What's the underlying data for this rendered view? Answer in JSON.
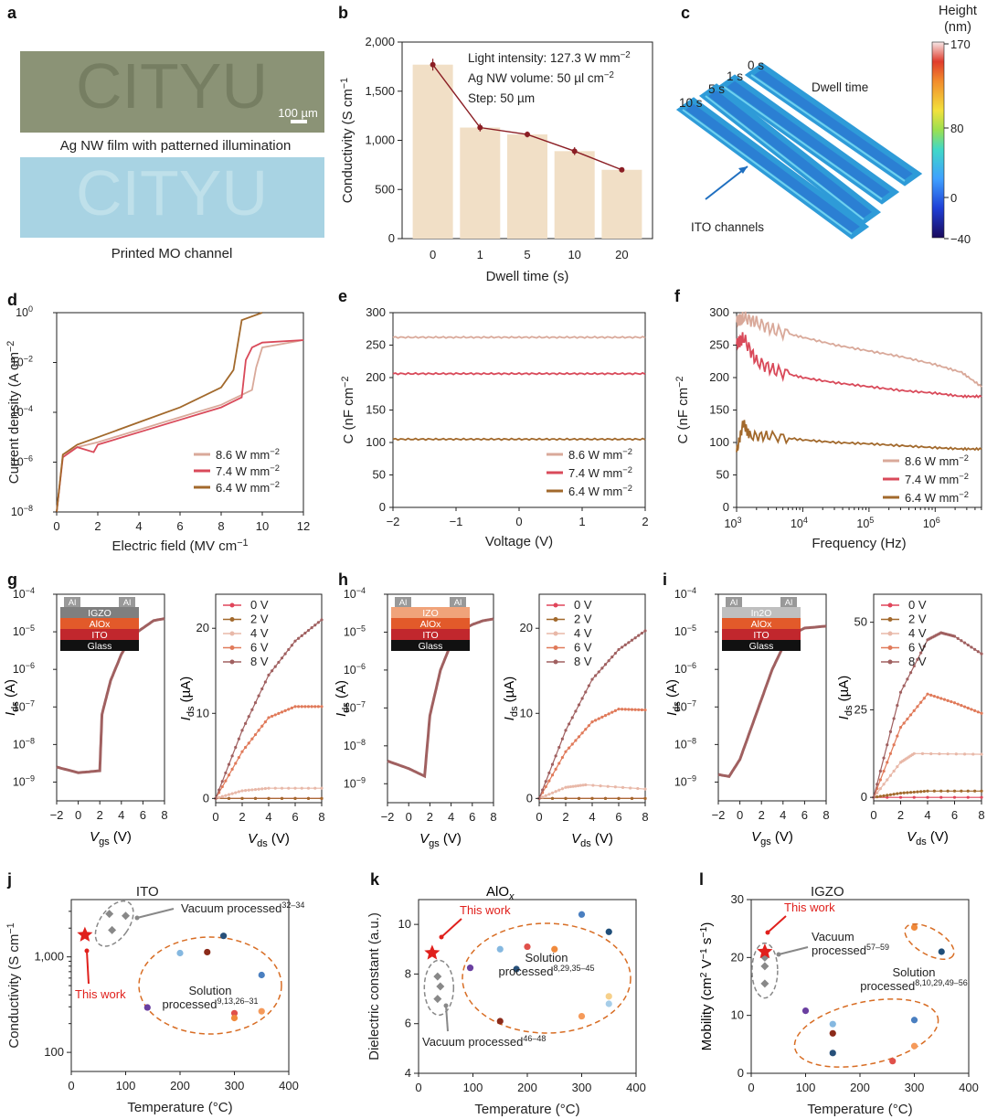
{
  "colors": {
    "c86": "#d9a99a",
    "c74": "#d94a5a",
    "c64": "#a2692c",
    "bar": "#f1dfc6",
    "red": "#e0201c",
    "orange": "#d86d24",
    "gray": "#888888"
  },
  "panels": {
    "a": {
      "letter": "a",
      "caption_top": "Ag NW film with patterned illumination",
      "caption_bottom": "Printed MO channel",
      "photo_text": "CITYU",
      "scale_bar": "100 µm"
    },
    "b": {
      "letter": "b"
    },
    "c": {
      "letter": "c",
      "cbar_title": [
        "Height",
        "(nm)"
      ],
      "cbar_ticks": [
        "170",
        "80",
        "0",
        "−40"
      ],
      "dwell_label": "Dwell time",
      "channels_label": "ITO channels",
      "times": [
        "0 s",
        "1 s",
        "5 s",
        "10 s"
      ]
    },
    "d": {
      "letter": "d"
    },
    "e": {
      "letter": "e"
    },
    "f": {
      "letter": "f"
    },
    "g": {
      "letter": "g",
      "stack": [
        "IGZO",
        "AlOx",
        "ITO",
        "Glass"
      ],
      "al": "Al"
    },
    "h": {
      "letter": "h",
      "stack": [
        "IZO",
        "AlOx",
        "ITO",
        "Glass"
      ],
      "al": "Al"
    },
    "i": {
      "letter": "i",
      "stack": [
        "In2O",
        "AlOx",
        "ITO",
        "Glass"
      ],
      "al": "Al"
    },
    "j": {
      "letter": "j"
    },
    "k": {
      "letter": "k"
    },
    "l": {
      "letter": "l"
    }
  },
  "chart_data": [
    {
      "id": "b",
      "type": "bar",
      "categories": [
        "0",
        "1",
        "5",
        "10",
        "20"
      ],
      "values": [
        1770,
        1130,
        1060,
        890,
        700
      ],
      "errors": [
        60,
        40,
        30,
        40,
        20
      ],
      "xlabel": "Dwell time (s)",
      "ylabel": "Conductivity (S cm−1)",
      "ylim": [
        0,
        2000
      ],
      "yticks": [
        "0",
        "500",
        "1,000",
        "1,500",
        "2,000"
      ],
      "annotations": [
        "Light intensity: 127.3 W mm−2",
        "Ag NW volume: 50 µl cm−2",
        "Step: 50 µm"
      ]
    },
    {
      "id": "d",
      "type": "line",
      "xlabel": "Electric field (MV cm−1)",
      "ylabel": "Current density (A cm−2)",
      "xlim": [
        0,
        12
      ],
      "ylim_log": [
        -8,
        0
      ],
      "xticks": [
        "0",
        "2",
        "4",
        "6",
        "8",
        "10",
        "12"
      ],
      "yticks": [
        "10−8",
        "10−6",
        "10−4",
        "10−2",
        "100"
      ],
      "series": [
        {
          "name": "8.6 W mm−2",
          "x": [
            0,
            0.3,
            1,
            2,
            4,
            6,
            8,
            9,
            9.5,
            9.7,
            10,
            12
          ],
          "y": [
            -8,
            -5.7,
            -5.4,
            -5.2,
            -4.7,
            -4.2,
            -3.7,
            -3.3,
            -3.1,
            -2.2,
            -1.4,
            -1.1
          ]
        },
        {
          "name": "7.4 W mm−2",
          "x": [
            0,
            0.3,
            1,
            1.8,
            2,
            4,
            6,
            8,
            9,
            9.2,
            9.5,
            10,
            12
          ],
          "y": [
            -8,
            -5.8,
            -5.4,
            -5.6,
            -5.3,
            -4.8,
            -4.3,
            -3.8,
            -3.4,
            -1.9,
            -1.4,
            -1.2,
            -1.1
          ]
        },
        {
          "name": "6.4 W mm−2",
          "x": [
            0,
            0.3,
            1,
            2,
            4,
            6,
            8,
            8.6,
            9,
            10
          ],
          "y": [
            -8,
            -5.7,
            -5.3,
            -5.0,
            -4.4,
            -3.8,
            -3.0,
            -2.3,
            -0.3,
            0
          ]
        }
      ]
    },
    {
      "id": "e",
      "type": "line",
      "xlabel": "Voltage (V)",
      "ylabel": "C (nF cm−2)",
      "xlim": [
        -2,
        2
      ],
      "ylim": [
        0,
        300
      ],
      "xticks": [
        "−2",
        "−1",
        "0",
        "1",
        "2"
      ],
      "yticks": [
        "0",
        "50",
        "100",
        "150",
        "200",
        "250",
        "300"
      ],
      "series": [
        {
          "name": "8.6 W mm−2",
          "x": [
            -2,
            2
          ],
          "y": [
            262,
            262
          ]
        },
        {
          "name": "7.4 W mm−2",
          "x": [
            -2,
            2
          ],
          "y": [
            206,
            206
          ]
        },
        {
          "name": "6.4 W mm−2",
          "x": [
            -2,
            2
          ],
          "y": [
            105,
            105
          ]
        }
      ]
    },
    {
      "id": "f",
      "type": "line",
      "xlabel": "Frequency (Hz)",
      "ylabel": "C (nF cm−2)",
      "xlim_log": [
        3,
        6.7
      ],
      "ylim": [
        0,
        300
      ],
      "xticks": [
        "103",
        "104",
        "105",
        "106"
      ],
      "yticks": [
        "0",
        "50",
        "100",
        "150",
        "200",
        "250",
        "300"
      ],
      "series": [
        {
          "name": "8.6 W mm−2",
          "x": [
            3,
            3.1,
            3.3,
            3.6,
            4,
            4.5,
            5,
            5.5,
            6,
            6.4,
            6.7
          ],
          "y": [
            285,
            293,
            285,
            272,
            262,
            250,
            241,
            232,
            220,
            208,
            186
          ]
        },
        {
          "name": "7.4 W mm−2",
          "x": [
            3,
            3.1,
            3.3,
            3.6,
            4,
            4.5,
            5,
            5.5,
            6,
            6.4,
            6.7
          ],
          "y": [
            250,
            262,
            225,
            210,
            200,
            192,
            186,
            180,
            176,
            171,
            171
          ]
        },
        {
          "name": "6.4 W mm−2",
          "x": [
            3,
            3.1,
            3.2,
            3.5,
            4,
            4.5,
            5,
            5.5,
            6,
            6.4,
            6.7
          ],
          "y": [
            85,
            130,
            110,
            110,
            104,
            100,
            98,
            95,
            92,
            90,
            90
          ]
        }
      ]
    },
    {
      "id": "g_transfer",
      "type": "line",
      "xlabel": "Vgs (V)",
      "ylabel": "Ids (A)",
      "xlim": [
        -2,
        8
      ],
      "ylim_log": [
        -9.5,
        -4
      ],
      "xticks": [
        "−2",
        "0",
        "2",
        "4",
        "6",
        "8"
      ],
      "yticks": [
        "10−9",
        "10−8",
        "10−7",
        "10−6",
        "10−5",
        "10−4"
      ],
      "series": [
        {
          "name": "Ids",
          "x": [
            -2,
            0,
            2,
            2.2,
            3,
            4,
            5,
            6,
            7,
            8
          ],
          "y": [
            -8.6,
            -8.75,
            -8.7,
            -7.2,
            -6.3,
            -5.6,
            -5.1,
            -4.9,
            -4.7,
            -4.65
          ]
        }
      ]
    },
    {
      "id": "g_output",
      "type": "line",
      "xlabel": "Vds (V)",
      "ylabel": "Ids (µA)",
      "xlim": [
        0,
        8
      ],
      "ylim": [
        -0.5,
        24
      ],
      "xticks": [
        "0",
        "2",
        "4",
        "6",
        "8"
      ],
      "yticks": [
        "0",
        "10",
        "20"
      ],
      "series": [
        {
          "name": "0 V",
          "x": [
            0,
            8
          ],
          "y": [
            0,
            0
          ]
        },
        {
          "name": "2 V",
          "x": [
            0,
            8
          ],
          "y": [
            0,
            0
          ]
        },
        {
          "name": "4 V",
          "x": [
            0,
            2,
            4,
            8
          ],
          "y": [
            0,
            0.9,
            1.2,
            1.2
          ]
        },
        {
          "name": "6 V",
          "x": [
            0,
            2,
            4,
            6,
            8
          ],
          "y": [
            0,
            5.5,
            9.5,
            10.8,
            10.8
          ]
        },
        {
          "name": "8 V",
          "x": [
            0,
            2,
            4,
            6,
            8
          ],
          "y": [
            0,
            8,
            14.5,
            18.5,
            21
          ]
        }
      ]
    },
    {
      "id": "h_transfer",
      "type": "line",
      "xlabel": "Vgs (V)",
      "ylabel": "Ids (A)",
      "xlim": [
        -2,
        8
      ],
      "ylim_log": [
        -9.5,
        -4
      ],
      "xticks": [
        "−2",
        "0",
        "2",
        "4",
        "6",
        "8"
      ],
      "yticks": [
        "10−9",
        "10−8",
        "10−7",
        "10−6",
        "10−5",
        "10−4"
      ],
      "series": [
        {
          "name": "Ids",
          "x": [
            -2,
            0,
            1.5,
            2,
            3,
            4,
            5,
            6,
            7,
            8
          ],
          "y": [
            -8.4,
            -8.6,
            -8.8,
            -7.2,
            -6.0,
            -5.3,
            -4.95,
            -4.8,
            -4.7,
            -4.65
          ]
        }
      ]
    },
    {
      "id": "h_output",
      "type": "line",
      "xlabel": "Vds (V)",
      "ylabel": "Ids (µA)",
      "xlim": [
        0,
        8
      ],
      "ylim": [
        -0.5,
        24
      ],
      "xticks": [
        "0",
        "2",
        "4",
        "6",
        "8"
      ],
      "yticks": [
        "0",
        "10",
        "20"
      ],
      "series": [
        {
          "name": "0 V",
          "x": [
            0,
            8
          ],
          "y": [
            0,
            0
          ]
        },
        {
          "name": "2 V",
          "x": [
            0,
            8
          ],
          "y": [
            0,
            0
          ]
        },
        {
          "name": "4 V",
          "x": [
            0,
            2,
            3.5,
            8
          ],
          "y": [
            0,
            1.3,
            1.6,
            1.1
          ]
        },
        {
          "name": "6 V",
          "x": [
            0,
            2,
            4,
            6,
            8
          ],
          "y": [
            0,
            5.5,
            9,
            10.5,
            10.4
          ]
        },
        {
          "name": "8 V",
          "x": [
            0,
            2,
            4,
            6,
            8
          ],
          "y": [
            0,
            8,
            14,
            17.5,
            19.7
          ]
        }
      ]
    },
    {
      "id": "i_transfer",
      "type": "line",
      "xlabel": "Vgs (V)",
      "ylabel": "Ids (A)",
      "xlim": [
        -2,
        8
      ],
      "ylim_log": [
        -9.5,
        -4
      ],
      "xticks": [
        "−2",
        "0",
        "2",
        "4",
        "6",
        "8"
      ],
      "yticks": [
        "10−9",
        "10−8",
        "10−7",
        "10−6",
        "10−5",
        "10−4"
      ],
      "series": [
        {
          "name": "Ids",
          "x": [
            -2,
            -1,
            0,
            1,
            2,
            3,
            4,
            5,
            6,
            8
          ],
          "y": [
            -8.8,
            -8.85,
            -8.4,
            -7.6,
            -6.8,
            -6.0,
            -5.4,
            -5.05,
            -4.9,
            -4.85
          ]
        }
      ]
    },
    {
      "id": "i_output",
      "type": "line",
      "xlabel": "Vds (V)",
      "ylabel": "Ids (µA)",
      "xlim": [
        0,
        8
      ],
      "ylim": [
        -1,
        58
      ],
      "xticks": [
        "0",
        "2",
        "4",
        "6",
        "8"
      ],
      "yticks": [
        "0",
        "25",
        "50"
      ],
      "series": [
        {
          "name": "0 V",
          "x": [
            0,
            8
          ],
          "y": [
            0,
            0
          ]
        },
        {
          "name": "2 V",
          "x": [
            0,
            2,
            4,
            8
          ],
          "y": [
            0,
            1.2,
            1.8,
            1.8
          ]
        },
        {
          "name": "4 V",
          "x": [
            0,
            2,
            3,
            8
          ],
          "y": [
            0,
            10,
            12.5,
            12.3
          ]
        },
        {
          "name": "6 V",
          "x": [
            0,
            2,
            4,
            6,
            8
          ],
          "y": [
            0,
            20,
            29.5,
            27,
            24
          ]
        },
        {
          "name": "8 V",
          "x": [
            0,
            2,
            4,
            5,
            6,
            8
          ],
          "y": [
            0,
            30,
            45,
            47,
            46,
            41
          ]
        }
      ]
    },
    {
      "id": "j",
      "type": "scatter",
      "title": "ITO",
      "xlabel": "Temperature (°C)",
      "ylabel": "Conductivity (S cm−1)",
      "xlim": [
        0,
        400
      ],
      "ylim_log": [
        1.8,
        3.6
      ],
      "xticks": [
        "0",
        "100",
        "200",
        "300",
        "400"
      ],
      "yticks": [
        "100",
        "1,000"
      ],
      "this_work": {
        "x": 25,
        "y": 3.23,
        "label": "This work"
      },
      "vacuum": {
        "label": "Vacuum processed",
        "ref": "32–34",
        "x": [
          70,
          100,
          75
        ],
        "y": [
          3.45,
          3.43,
          3.28
        ]
      },
      "solution": {
        "label": "Solution processed",
        "ref": "9,13,26–31",
        "x": [
          140,
          200,
          250,
          280,
          300,
          300,
          350,
          350
        ],
        "y": [
          2.47,
          3.04,
          3.05,
          3.22,
          2.41,
          2.36,
          2.81,
          2.43
        ]
      }
    },
    {
      "id": "k",
      "type": "scatter",
      "title": "AlOx",
      "xlabel": "Temperature (°C)",
      "ylabel": "Dielectric constant (a.u.)",
      "xlim": [
        0,
        400
      ],
      "ylim": [
        4,
        11
      ],
      "xticks": [
        "0",
        "100",
        "200",
        "300",
        "400"
      ],
      "yticks": [
        "4",
        "6",
        "8",
        "10"
      ],
      "this_work": {
        "x": 25,
        "y": 8.85,
        "label": "This work"
      },
      "vacuum": {
        "label": "Vacuum processed",
        "ref": "46–48",
        "x": [
          35,
          40,
          35
        ],
        "y": [
          7.9,
          7.5,
          7.0
        ]
      },
      "solution": {
        "label": "Solution processed",
        "ref": "8,29,35–45",
        "x": [
          95,
          150,
          150,
          180,
          200,
          250,
          300,
          300,
          350,
          350,
          350
        ],
        "y": [
          8.25,
          9.0,
          6.1,
          8.2,
          9.1,
          9.0,
          10.4,
          6.3,
          9.7,
          7.1,
          6.8
        ]
      }
    },
    {
      "id": "l",
      "type": "scatter",
      "title": "IGZO",
      "xlabel": "Temperature (°C)",
      "ylabel": "Mobility (cm2 V−1 s−1)",
      "xlim": [
        0,
        400
      ],
      "ylim": [
        0,
        30
      ],
      "xticks": [
        "0",
        "100",
        "200",
        "300",
        "400"
      ],
      "yticks": [
        "0",
        "10",
        "20",
        "30"
      ],
      "this_work": {
        "x": 25,
        "y": 21,
        "label": "This work"
      },
      "vacuum": {
        "label": "Vacuum processed",
        "ref": "57–59",
        "x": [
          25,
          25,
          25
        ],
        "y": [
          18.5,
          15.5,
          20
        ]
      },
      "solution": {
        "label": "Solution processed",
        "ref": "8,10,29,49–56",
        "x": [
          100,
          150,
          150,
          150,
          260,
          300,
          300,
          300,
          350
        ],
        "y": [
          10.8,
          8.5,
          6.9,
          3.5,
          2.1,
          25.2,
          9.2,
          4.7,
          21
        ]
      }
    }
  ]
}
